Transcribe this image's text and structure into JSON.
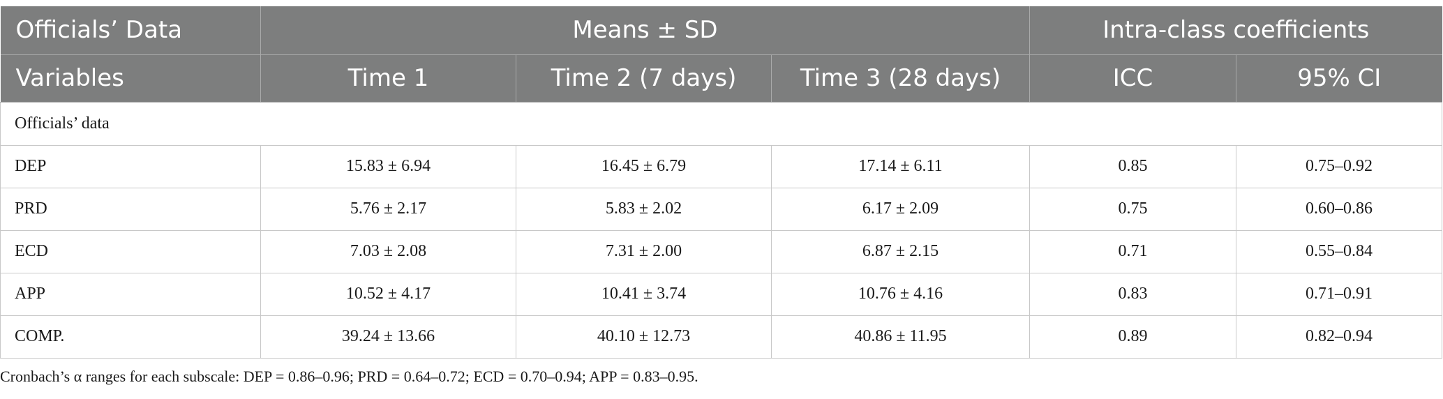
{
  "header": {
    "group_row": [
      "Officials’ Data",
      "Means ± SD",
      "Intra-class coefficients"
    ],
    "column_row": [
      "Variables",
      "Time 1",
      "Time 2 (7 days)",
      "Time 3 (28 days)",
      "ICC",
      "95% CI"
    ]
  },
  "section_label": "Officials’ data",
  "rows": [
    {
      "variable": "DEP",
      "time1": "15.83 ± 6.94",
      "time2": "16.45 ± 6.79",
      "time3": "17.14 ± 6.11",
      "icc": "0.85",
      "ci": "0.75–0.92"
    },
    {
      "variable": "PRD",
      "time1": "5.76 ± 2.17",
      "time2": "5.83 ± 2.02",
      "time3": "6.17 ± 2.09",
      "icc": "0.75",
      "ci": "0.60–0.86"
    },
    {
      "variable": "ECD",
      "time1": "7.03 ± 2.08",
      "time2": "7.31 ± 2.00",
      "time3": "6.87 ± 2.15",
      "icc": "0.71",
      "ci": "0.55–0.84"
    },
    {
      "variable": "APP",
      "time1": "10.52 ± 4.17",
      "time2": "10.41 ± 3.74",
      "time3": "10.76 ± 4.16",
      "icc": "0.83",
      "ci": "0.71–0.91"
    },
    {
      "variable": "COMP.",
      "time1": "39.24 ± 13.66",
      "time2": "40.10 ± 12.73",
      "time3": "40.86 ± 11.95",
      "icc": "0.89",
      "ci": "0.82–0.94"
    }
  ],
  "footnote": "Cronbach’s α ranges for each subscale: DEP = 0.86–0.96; PRD = 0.64–0.72; ECD = 0.70–0.94; APP = 0.83–0.95.",
  "colors": {
    "header_bg": "#7d7e7e",
    "header_text": "#ffffff",
    "grid": "#c8c8c8"
  }
}
